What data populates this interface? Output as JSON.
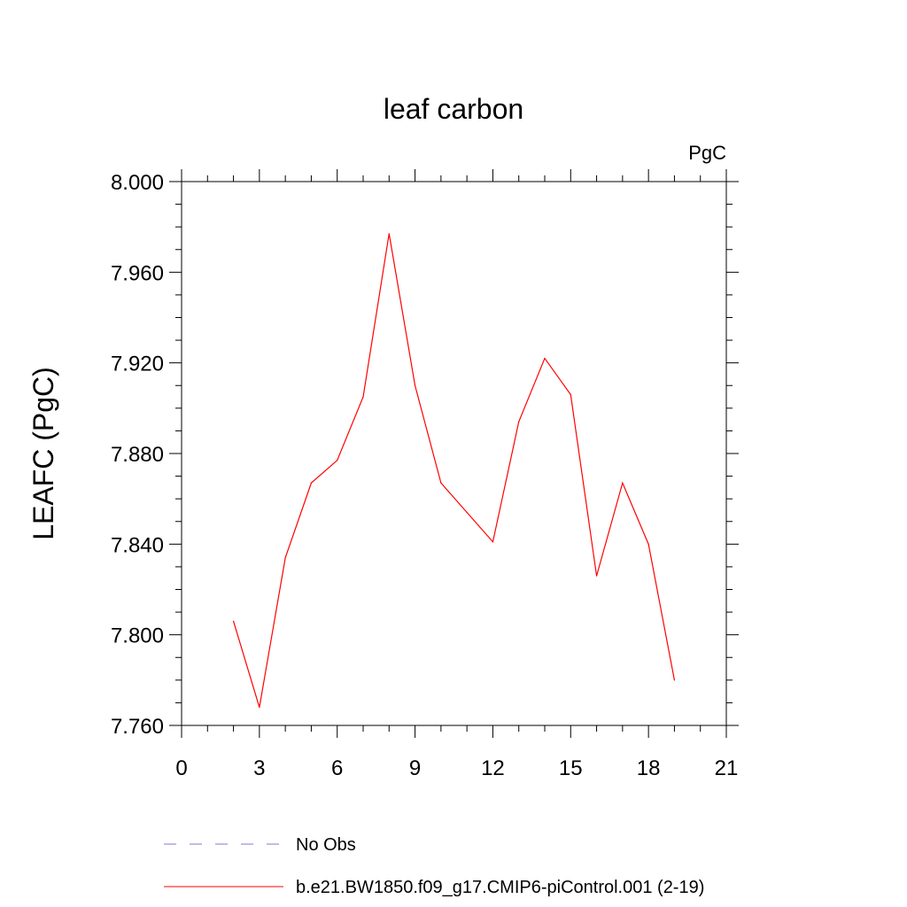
{
  "chart_data": {
    "type": "line",
    "title": "leaf carbon",
    "units_label": "PgC",
    "ylabel": "LEAFC  (PgC)",
    "xlabel": "",
    "xlim": [
      0,
      21
    ],
    "ylim": [
      7.76,
      8.0
    ],
    "x_ticks": [
      0,
      3,
      6,
      9,
      12,
      15,
      18,
      21
    ],
    "x_tick_labels": [
      "0",
      "3",
      "6",
      "9",
      "12",
      "15",
      "18",
      "21"
    ],
    "y_ticks": [
      7.76,
      7.8,
      7.84,
      7.88,
      7.92,
      7.96,
      8.0
    ],
    "y_tick_labels": [
      "7.760",
      "7.800",
      "7.840",
      "7.880",
      "7.920",
      "7.960",
      "8.000"
    ],
    "grid": false,
    "legend_position": "bottom",
    "series": [
      {
        "name": "No Obs",
        "color": "#7b7bd6",
        "dash": "dashed",
        "x": [],
        "y": []
      },
      {
        "name": "b.e21.BW1850.f09_g17.CMIP6-piControl.001 (2-19)",
        "color": "#ff0000",
        "dash": "solid",
        "x": [
          2,
          3,
          4,
          5,
          6,
          7,
          8,
          9,
          10,
          11,
          12,
          13,
          14,
          15,
          16,
          17,
          18,
          19
        ],
        "y": [
          7.806,
          7.768,
          7.834,
          7.867,
          7.877,
          7.905,
          7.977,
          7.91,
          7.867,
          7.854,
          7.841,
          7.894,
          7.922,
          7.906,
          7.826,
          7.867,
          7.84,
          7.78
        ]
      }
    ]
  }
}
